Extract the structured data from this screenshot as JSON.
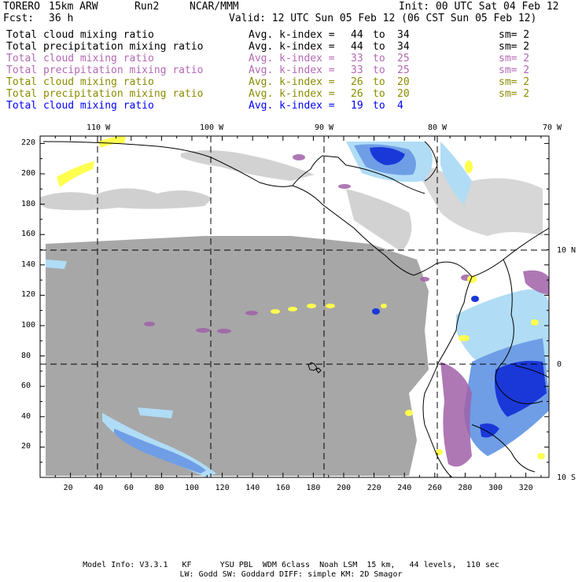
{
  "header": {
    "model": "TORERO",
    "resolution": "15km ARW",
    "run": "Run2",
    "org": "NCAR/MMM",
    "init": "Init: 00 UTC Sat 04 Feb 12",
    "fcst_label": "Fcst:",
    "fcst_value": "36 h",
    "valid": "Valid: 12 UTC Sun 05 Feb 12 (06 CST Sun 05 Feb 12)"
  },
  "colors": {
    "black": "#000000",
    "violet": "#b469b4",
    "olive": "#8b8b00",
    "blue": "#0000ff",
    "gray_field": "#9e9e9e",
    "light_blue": "#b0dcf5",
    "mid_blue": "#6f9ee6",
    "dark_blue": "#1a38d8",
    "yellow": "#ffff4d",
    "purple": "#a060a8"
  },
  "legend": [
    {
      "name": "Total cloud mixing ratio",
      "index_label": "Avg. k-index =",
      "from": "44",
      "to": "to",
      "end": "34",
      "sm": "sm= 2",
      "color": "#000000"
    },
    {
      "name": "Total precipitation mixing ratio",
      "index_label": "Avg. k-index =",
      "from": "44",
      "to": "to",
      "end": "34",
      "sm": "sm= 2",
      "color": "#000000"
    },
    {
      "name": "Total cloud mixing ratio",
      "index_label": "Avg. k-index =",
      "from": "33",
      "to": "to",
      "end": "25",
      "sm": "sm= 2",
      "color": "#b469b4"
    },
    {
      "name": "Total precipitation mixing ratio",
      "index_label": "Avg. k-index =",
      "from": "33",
      "to": "to",
      "end": "25",
      "sm": "sm= 2",
      "color": "#b469b4"
    },
    {
      "name": "Total cloud mixing ratio",
      "index_label": "Avg. k-index =",
      "from": "26",
      "to": "to",
      "end": "20",
      "sm": "sm= 2",
      "color": "#8b8b00"
    },
    {
      "name": "Total precipitation mixing ratio",
      "index_label": "Avg. k-index =",
      "from": "26",
      "to": "to",
      "end": "20",
      "sm": "sm= 2",
      "color": "#8b8b00"
    },
    {
      "name": "Total cloud mixing ratio",
      "index_label": "Avg. k-index =",
      "from": "19",
      "to": "to",
      "end": "4",
      "sm": "",
      "color": "#0000ff"
    }
  ],
  "map": {
    "x_ticks": [
      "20",
      "40",
      "60",
      "80",
      "100",
      "120",
      "140",
      "160",
      "180",
      "200",
      "220",
      "240",
      "260",
      "280",
      "300",
      "320"
    ],
    "y_ticks": [
      "220",
      "200",
      "180",
      "160",
      "140",
      "120",
      "100",
      "80",
      "60",
      "40",
      "20"
    ],
    "lon_labels": [
      "110 W",
      "100 W",
      "90 W",
      "80 W",
      "70 W"
    ],
    "lat_labels": [
      "10 N",
      "0",
      "10 S"
    ]
  },
  "footer": {
    "line1": "Model Info: V3.3.1   KF      YSU PBL  WDM 6class  Noah LSM  15 km,   44 levels,  110 sec",
    "line2": "LW: Godd SW: Goddard DIFF: simple KM: 2D Smagor"
  }
}
